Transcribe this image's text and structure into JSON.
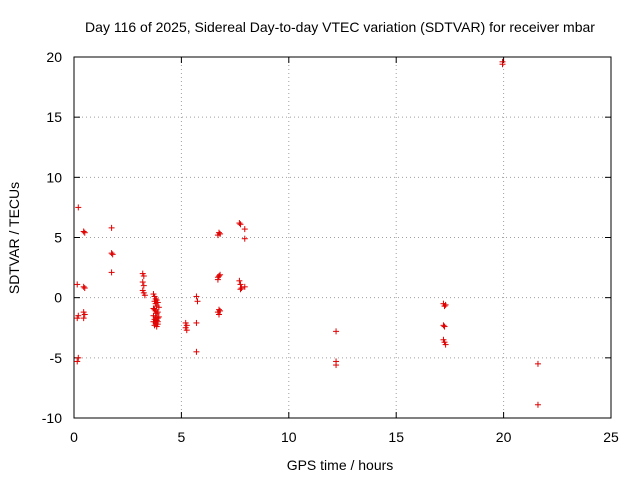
{
  "chart_data": {
    "type": "scatter",
    "title": "Day 116 of 2025, Sidereal Day-to-day VTEC variation (SDTVAR) for receiver mbar",
    "xlabel": "GPS time / hours",
    "ylabel": "SDTVAR / TECUs",
    "xlim": [
      0,
      25
    ],
    "ylim": [
      -10,
      20
    ],
    "xticks": [
      0,
      5,
      10,
      15,
      20,
      25
    ],
    "yticks": [
      -10,
      -5,
      0,
      5,
      10,
      15,
      20
    ],
    "grid": true,
    "marker": "+",
    "marker_color": "#e00000",
    "points": [
      [
        0.2,
        7.5
      ],
      [
        0.15,
        1.1
      ],
      [
        0.2,
        -1.5
      ],
      [
        0.15,
        -1.7
      ],
      [
        0.2,
        -5.0
      ],
      [
        0.15,
        -5.3
      ],
      [
        0.45,
        5.5
      ],
      [
        0.5,
        5.4
      ],
      [
        0.45,
        0.9
      ],
      [
        0.5,
        0.8
      ],
      [
        0.45,
        -1.2
      ],
      [
        0.5,
        -1.4
      ],
      [
        0.45,
        -1.7
      ],
      [
        1.75,
        5.8
      ],
      [
        1.75,
        3.7
      ],
      [
        1.8,
        3.6
      ],
      [
        1.75,
        2.1
      ],
      [
        3.2,
        2.0
      ],
      [
        3.25,
        1.8
      ],
      [
        3.2,
        1.3
      ],
      [
        3.25,
        1.0
      ],
      [
        3.2,
        0.6
      ],
      [
        3.25,
        0.4
      ],
      [
        3.3,
        0.2
      ],
      [
        3.7,
        0.3
      ],
      [
        3.75,
        0.1
      ],
      [
        3.8,
        -0.1
      ],
      [
        3.75,
        -0.3
      ],
      [
        3.85,
        -0.2
      ],
      [
        3.9,
        -0.4
      ],
      [
        3.8,
        -0.5
      ],
      [
        3.85,
        -0.7
      ],
      [
        3.7,
        -0.9
      ],
      [
        3.75,
        -1.0
      ],
      [
        3.8,
        -1.1
      ],
      [
        3.9,
        -1.2
      ],
      [
        3.85,
        -1.3
      ],
      [
        3.7,
        -1.5
      ],
      [
        3.8,
        -1.6
      ],
      [
        3.9,
        -1.7
      ],
      [
        3.75,
        -1.8
      ],
      [
        3.85,
        -1.9
      ],
      [
        3.7,
        -2.0
      ],
      [
        3.8,
        -2.1
      ],
      [
        3.9,
        -2.2
      ],
      [
        3.75,
        -2.3
      ],
      [
        3.85,
        -2.4
      ],
      [
        3.95,
        -0.8
      ],
      [
        3.95,
        -1.6
      ],
      [
        3.9,
        -2.0
      ],
      [
        5.2,
        -2.1
      ],
      [
        5.25,
        -2.3
      ],
      [
        5.2,
        -2.5
      ],
      [
        5.25,
        -2.7
      ],
      [
        5.7,
        0.1
      ],
      [
        5.75,
        -0.3
      ],
      [
        5.7,
        -2.1
      ],
      [
        5.7,
        -4.5
      ],
      [
        6.7,
        5.2
      ],
      [
        6.75,
        5.4
      ],
      [
        6.8,
        5.3
      ],
      [
        6.7,
        1.7
      ],
      [
        6.8,
        1.9
      ],
      [
        6.75,
        1.8
      ],
      [
        6.7,
        1.5
      ],
      [
        6.75,
        -1.0
      ],
      [
        6.7,
        -1.2
      ],
      [
        6.8,
        -1.1
      ],
      [
        6.75,
        -1.4
      ],
      [
        7.7,
        6.2
      ],
      [
        7.75,
        6.1
      ],
      [
        7.95,
        5.7
      ],
      [
        7.95,
        4.9
      ],
      [
        7.7,
        1.4
      ],
      [
        7.75,
        1.1
      ],
      [
        7.95,
        0.9
      ],
      [
        7.75,
        0.7
      ],
      [
        7.8,
        0.8
      ],
      [
        12.2,
        -2.8
      ],
      [
        12.2,
        -5.3
      ],
      [
        12.2,
        -5.6
      ],
      [
        17.2,
        -0.5
      ],
      [
        17.25,
        -0.7
      ],
      [
        17.3,
        -0.6
      ],
      [
        17.2,
        -2.3
      ],
      [
        17.25,
        -2.4
      ],
      [
        17.2,
        -3.5
      ],
      [
        17.25,
        -3.7
      ],
      [
        17.3,
        -3.9
      ],
      [
        19.95,
        19.6
      ],
      [
        19.95,
        19.4
      ],
      [
        21.6,
        -5.5
      ],
      [
        21.6,
        -8.9
      ]
    ]
  }
}
